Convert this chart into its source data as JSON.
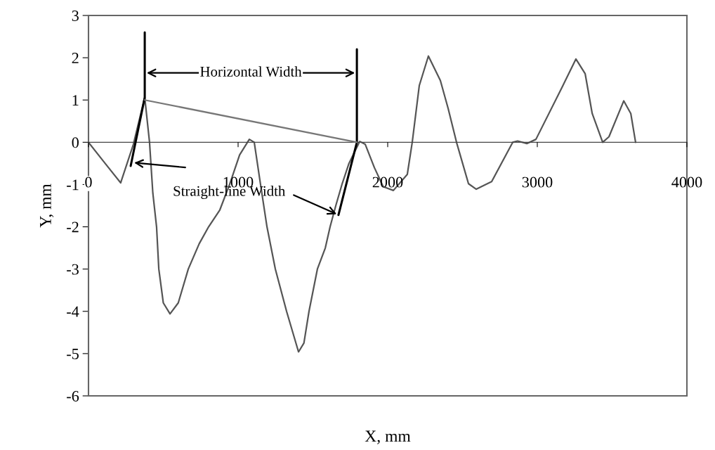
{
  "chart_data": {
    "type": "line",
    "xlabel": "X, mm",
    "ylabel": "Y, mm",
    "xlim": [
      0,
      4000
    ],
    "xticks": [
      0,
      1000,
      2000,
      3000,
      4000
    ],
    "ylim": [
      -6,
      3
    ],
    "yticks": [
      -6,
      -5,
      -4,
      -3,
      -2,
      -1,
      0,
      1,
      2,
      3
    ],
    "grid": false,
    "marker": "none",
    "line_style": "solid",
    "series": [
      {
        "color": "#555555",
        "x": [
          0,
          100,
          215,
          300,
          376,
          408,
          430,
          455,
          470,
          500,
          545,
          600,
          667,
          740,
          803,
          878,
          943,
          1010,
          1075,
          1108,
          1150,
          1193,
          1249,
          1324,
          1404,
          1440,
          1474,
          1530,
          1583,
          1615,
          1653,
          1694,
          1741,
          1813,
          1850,
          1911,
          1970,
          2038,
          2131,
          2164,
          2211,
          2272,
          2352,
          2404,
          2460,
          2540,
          2592,
          2695,
          2836,
          2868,
          2930,
          2991,
          3164,
          3258,
          3320,
          3367,
          3437,
          3479,
          3578,
          3625,
          3657
        ],
        "values": [
          0,
          -0.45,
          -0.96,
          -0.05,
          1.06,
          0.0,
          -1.2,
          -2.0,
          -3.0,
          -3.8,
          -4.06,
          -3.8,
          -3.0,
          -2.4,
          -2.0,
          -1.6,
          -1.0,
          -0.3,
          0.07,
          0.0,
          -1.0,
          -2.0,
          -3.0,
          -4.0,
          -4.96,
          -4.75,
          -4.0,
          -3.0,
          -2.5,
          -2.0,
          -1.5,
          -1.0,
          -0.5,
          0.02,
          -0.05,
          -0.6,
          -1.05,
          -1.14,
          -0.76,
          0.0,
          1.34,
          2.04,
          1.46,
          0.8,
          0.0,
          -0.98,
          -1.11,
          -0.93,
          0.0,
          0.03,
          -0.03,
          0.07,
          1.29,
          1.97,
          1.62,
          0.68,
          0.0,
          0.13,
          0.98,
          0.68,
          0.0
        ]
      },
      {
        "color": "#000000",
        "x": [
          282,
          376,
          376
        ],
        "values": [
          -0.56,
          1.06,
          2.6
        ]
      },
      {
        "color": "#000000",
        "x": [
          1671,
          1794,
          1794
        ],
        "values": [
          -1.72,
          0,
          2.2
        ]
      },
      {
        "color": "#777777",
        "x": [
          376,
          1794
        ],
        "values": [
          1.0,
          0.0
        ]
      }
    ],
    "annotations": [
      "Horizontal Width",
      {
        "text": "Straight-line Width",
        "x": 1671,
        "y": -1.72
      }
    ]
  }
}
